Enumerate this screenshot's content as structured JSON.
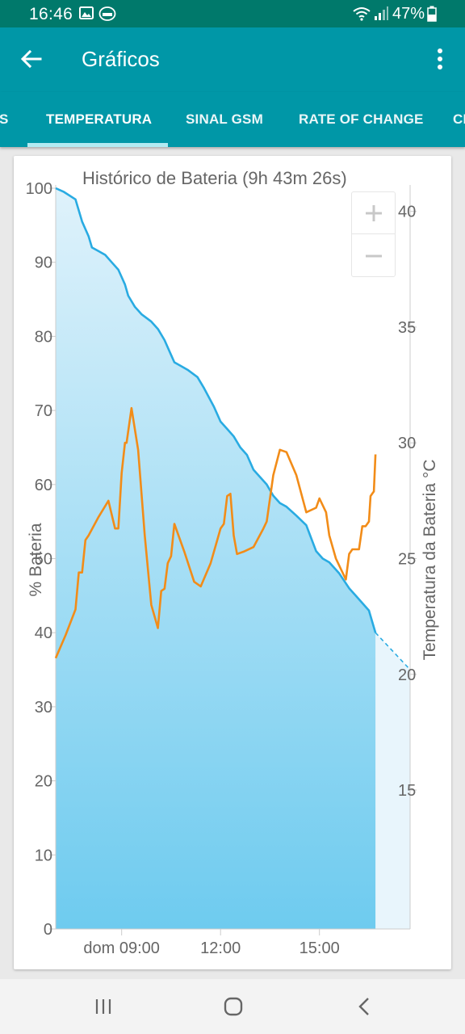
{
  "status_bar": {
    "time": "16:46",
    "battery_percent": "47%",
    "icons": [
      "gallery-icon",
      "app-notification-icon",
      "wifi-icon",
      "signal-icon",
      "battery-icon"
    ]
  },
  "app_bar": {
    "title": "Gráficos",
    "icons": [
      "back-arrow-icon",
      "overflow-menu-icon"
    ]
  },
  "tabs": [
    {
      "label": "S",
      "selected": false
    },
    {
      "label": "TEMPERATURA",
      "selected": true
    },
    {
      "label": "SINAL GSM",
      "selected": false
    },
    {
      "label": "RATE OF CHANGE",
      "selected": false
    },
    {
      "label": "CI",
      "selected": false
    }
  ],
  "zoom": {
    "zoom_in": "+",
    "zoom_out": "−"
  },
  "nav_bar": {
    "icons": [
      "recent-apps-icon",
      "home-icon",
      "back-icon"
    ]
  },
  "chart_data": {
    "type": "line",
    "title": "Histórico de Bateria (9h 43m 26s)",
    "y_left_label": "% Bateria",
    "y_right_label": "Temperatura da Bateria °C",
    "x_ticks": [
      "dom 09:00",
      "12:00",
      "15:00"
    ],
    "x_tick_hours": [
      9,
      12,
      15
    ],
    "x_range_hours": [
      7.0,
      17.75
    ],
    "y_left_range": [
      0,
      100
    ],
    "y_left_ticks": [
      "0",
      "10",
      "20",
      "30",
      "40",
      "50",
      "60",
      "70",
      "80",
      "90",
      "100"
    ],
    "y_right_range": [
      9,
      41
    ],
    "y_right_ticks": [
      "15",
      "20",
      "25",
      "30",
      "35",
      "40"
    ],
    "colors": {
      "battery": "#29abe2",
      "temperature": "#f28c18",
      "fill_top": "#dff2fb",
      "fill_bottom": "#6ecbef",
      "projection_fill": "#e8f5fc"
    },
    "series": [
      {
        "name": "% Bateria",
        "axis": "left",
        "x": [
          7.0,
          7.25,
          7.6,
          7.8,
          8.0,
          8.1,
          8.3,
          8.5,
          8.7,
          8.9,
          9.0,
          9.1,
          9.2,
          9.4,
          9.5,
          9.6,
          9.9,
          10.1,
          10.3,
          10.5,
          10.6,
          10.8,
          11.0,
          11.3,
          11.5,
          11.8,
          12.0,
          12.2,
          12.4,
          12.6,
          12.8,
          13.0,
          13.2,
          13.4,
          13.6,
          13.8,
          14.0,
          14.3,
          14.6,
          14.9,
          15.1,
          15.3,
          15.6,
          15.9,
          16.1,
          16.3,
          16.5,
          16.6,
          16.7
        ],
        "values": [
          100,
          99.5,
          98.5,
          95.5,
          93.5,
          92.0,
          91.5,
          91.0,
          90.0,
          89.0,
          88.0,
          87.0,
          85.5,
          84.0,
          83.5,
          83.0,
          82.0,
          81.0,
          79.5,
          77.5,
          76.5,
          76.0,
          75.5,
          74.5,
          73.0,
          70.5,
          68.5,
          67.5,
          66.5,
          65.0,
          64.0,
          62.0,
          61.0,
          60.0,
          58.5,
          57.5,
          57.0,
          55.8,
          54.5,
          51.0,
          50.0,
          49.5,
          48.0,
          46.0,
          45.0,
          44.0,
          43.0,
          41.5,
          40.0
        ]
      },
      {
        "name": "Temperatura da Bateria °C",
        "axis": "right",
        "x": [
          7.0,
          7.3,
          7.6,
          7.7,
          7.8,
          7.9,
          8.0,
          8.3,
          8.6,
          8.8,
          8.9,
          9.0,
          9.1,
          9.15,
          9.3,
          9.5,
          9.7,
          9.9,
          10.1,
          10.2,
          10.3,
          10.4,
          10.5,
          10.6,
          10.9,
          11.2,
          11.4,
          11.7,
          11.9,
          12.0,
          12.1,
          12.2,
          12.3,
          12.4,
          12.5,
          12.7,
          13.0,
          13.3,
          13.4,
          13.6,
          13.8,
          14.0,
          14.3,
          14.6,
          14.9,
          15.0,
          15.2,
          15.3,
          15.5,
          15.8,
          15.9,
          16.0,
          16.2,
          16.3,
          16.4,
          16.5,
          16.55,
          16.6,
          16.65,
          16.7
        ],
        "values": [
          20.7,
          21.7,
          22.8,
          24.4,
          24.4,
          25.8,
          26.0,
          26.8,
          27.5,
          26.3,
          26.3,
          28.7,
          30.0,
          30.0,
          31.5,
          29.7,
          26.0,
          23.0,
          22.0,
          23.6,
          23.7,
          24.8,
          25.1,
          26.5,
          25.3,
          24.0,
          23.8,
          24.8,
          25.8,
          26.3,
          26.5,
          27.7,
          27.8,
          26.0,
          25.2,
          25.3,
          25.5,
          26.3,
          26.6,
          28.6,
          29.7,
          29.6,
          28.6,
          27.0,
          27.2,
          27.6,
          27.0,
          26.0,
          25.0,
          24.1,
          25.2,
          25.4,
          25.4,
          26.4,
          26.4,
          26.6,
          27.7,
          27.8,
          27.9,
          29.5
        ]
      }
    ],
    "projection": {
      "x": [
        16.7,
        17.75
      ],
      "values": [
        40.0,
        35.0
      ]
    }
  }
}
